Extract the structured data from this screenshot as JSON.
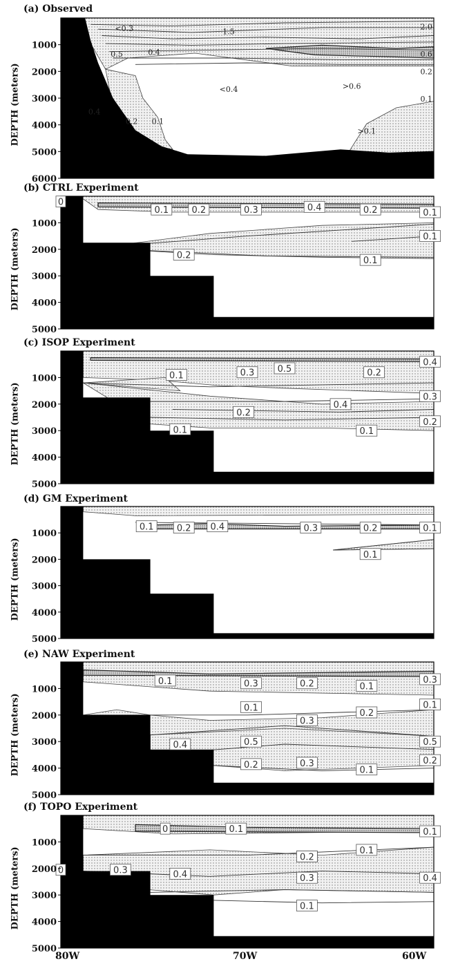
{
  "figure": {
    "xticks": [
      "80W",
      "70W",
      "60W"
    ],
    "ylabel": "DEPTH (meters)"
  },
  "chart_data": [
    {
      "type": "contour",
      "id": "a",
      "title": "(a) Observed",
      "ylabel": "DEPTH (meters)",
      "yticks": [
        "1000",
        "2000",
        "3000",
        "4000",
        "5000",
        "6000"
      ],
      "ylim": [
        0,
        6000
      ],
      "xlim": [
        "80W",
        "58W"
      ],
      "labels": [
        "<0.3",
        "1.5",
        "2.0",
        "0.5",
        "0.4",
        "0.6",
        "0.2",
        "<0.4",
        ">0.6",
        "0.1",
        "0.4",
        "0.2",
        "0.1",
        ">0.1"
      ]
    },
    {
      "type": "contour",
      "id": "b",
      "title": "(b) CTRL Experiment",
      "ylabel": "DEPTH (meters)",
      "yticks": [
        "1000",
        "2000",
        "3000",
        "4000",
        "5000"
      ],
      "ylim": [
        0,
        5000
      ],
      "labels": [
        "0",
        "0.1",
        "0.2",
        "0.3",
        "0.4",
        "0.2",
        "0.1",
        "0.2",
        "0.1",
        "0.1"
      ]
    },
    {
      "type": "contour",
      "id": "c",
      "title": "(c) ISOP Experiment",
      "ylabel": "DEPTH (meters)",
      "yticks": [
        "1000",
        "2000",
        "3000",
        "4000",
        "5000"
      ],
      "ylim": [
        0,
        5000
      ],
      "labels": [
        "0.1",
        "0.3",
        "0.5",
        "0.2",
        "0.4",
        "0.3",
        "0.4",
        "0.2",
        "0.1",
        "0.1",
        "0.2"
      ]
    },
    {
      "type": "contour",
      "id": "d",
      "title": "(d) GM Experiment",
      "ylabel": "DEPTH (meters)",
      "yticks": [
        "1000",
        "2000",
        "3000",
        "4000",
        "5000"
      ],
      "ylim": [
        0,
        5000
      ],
      "labels": [
        "0.1",
        "0.2",
        "0.4",
        "0.3",
        "0.2",
        "0.1",
        "0.1"
      ]
    },
    {
      "type": "contour",
      "id": "e",
      "title": "(e) NAW Experiment",
      "ylabel": "DEPTH (meters)",
      "yticks": [
        "1000",
        "2000",
        "3000",
        "4000",
        "5000"
      ],
      "ylim": [
        0,
        5000
      ],
      "labels": [
        "0.1",
        "0.3",
        "0.2",
        "0.1",
        "0.3",
        "0.1",
        "0.1",
        "0.3",
        "0.2",
        "0.4",
        "0.5",
        "0.5",
        "0.3",
        "0.2",
        "0.1",
        "0.2"
      ]
    },
    {
      "type": "contour",
      "id": "f",
      "title": "(f) TOPO Experiment",
      "ylabel": "DEPTH (meters)",
      "yticks": [
        "1000",
        "2000",
        "3000",
        "4000",
        "5000"
      ],
      "ylim": [
        0,
        5000
      ],
      "labels": [
        "0",
        "0.1",
        "0.2",
        "0.1",
        "0.1",
        "0.2",
        "0.3",
        "0.4",
        "0.4",
        "0.3",
        "0.1",
        "0"
      ]
    }
  ]
}
